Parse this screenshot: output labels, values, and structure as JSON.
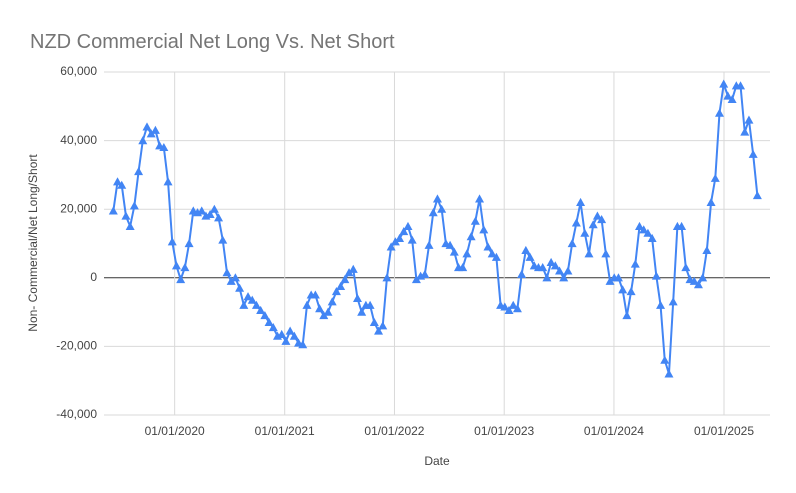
{
  "chart_data": {
    "type": "line",
    "title": "NZD Commercial Net Long Vs. Net Short",
    "x_label": "Date",
    "y_label": "Non- Commercial/Net Long/Short",
    "grid": true,
    "marker": "triangle",
    "xlim": [
      "2019-05-11",
      "2025-06-03"
    ],
    "xticks": [
      {
        "value": "2020-01-01",
        "label": "01/01/2020"
      },
      {
        "value": "2021-01-01",
        "label": "01/01/2021"
      },
      {
        "value": "2022-01-01",
        "label": "01/01/2022"
      },
      {
        "value": "2023-01-01",
        "label": "01/01/2023"
      },
      {
        "value": "2024-01-01",
        "label": "01/01/2024"
      },
      {
        "value": "2025-01-01",
        "label": "01/01/2025"
      }
    ],
    "ylim": [
      -40000,
      60000
    ],
    "yticks": [
      {
        "value": -40000,
        "label": "-40,000"
      },
      {
        "value": -20000,
        "label": "-20,000"
      },
      0,
      {
        "value": 20000,
        "label": "20,000"
      },
      {
        "value": 40000,
        "label": "40,000"
      },
      {
        "value": 60000,
        "label": "60,000"
      }
    ],
    "x": [
      "2019-06-11",
      "2019-06-25",
      "2019-07-09",
      "2019-07-23",
      "2019-08-06",
      "2019-08-20",
      "2019-09-03",
      "2019-09-17",
      "2019-10-01",
      "2019-10-15",
      "2019-10-29",
      "2019-11-12",
      "2019-11-26",
      "2019-12-10",
      "2019-12-24",
      "2020-01-07",
      "2020-01-21",
      "2020-02-04",
      "2020-02-18",
      "2020-03-03",
      "2020-03-17",
      "2020-03-31",
      "2020-04-14",
      "2020-04-28",
      "2020-05-12",
      "2020-05-26",
      "2020-06-09",
      "2020-06-23",
      "2020-07-07",
      "2020-07-21",
      "2020-08-04",
      "2020-08-18",
      "2020-09-01",
      "2020-09-15",
      "2020-09-29",
      "2020-10-13",
      "2020-10-27",
      "2020-11-10",
      "2020-11-24",
      "2020-12-08",
      "2020-12-22",
      "2021-01-05",
      "2021-01-19",
      "2021-02-02",
      "2021-02-16",
      "2021-03-02",
      "2021-03-16",
      "2021-03-30",
      "2021-04-13",
      "2021-04-27",
      "2021-05-11",
      "2021-05-25",
      "2021-06-08",
      "2021-06-22",
      "2021-07-06",
      "2021-07-20",
      "2021-08-03",
      "2021-08-17",
      "2021-08-31",
      "2021-09-14",
      "2021-09-28",
      "2021-10-12",
      "2021-10-26",
      "2021-11-09",
      "2021-11-23",
      "2021-12-07",
      "2021-12-21",
      "2022-01-04",
      "2022-01-18",
      "2022-02-01",
      "2022-02-15",
      "2022-03-01",
      "2022-03-15",
      "2022-03-29",
      "2022-04-12",
      "2022-04-26",
      "2022-05-10",
      "2022-05-24",
      "2022-06-07",
      "2022-06-21",
      "2022-07-05",
      "2022-07-19",
      "2022-08-02",
      "2022-08-16",
      "2022-08-30",
      "2022-09-13",
      "2022-09-27",
      "2022-10-11",
      "2022-10-25",
      "2022-11-08",
      "2022-11-22",
      "2022-12-06",
      "2022-12-20",
      "2023-01-03",
      "2023-01-17",
      "2023-01-31",
      "2023-02-14",
      "2023-02-28",
      "2023-03-14",
      "2023-03-28",
      "2023-04-11",
      "2023-04-25",
      "2023-05-09",
      "2023-05-23",
      "2023-06-06",
      "2023-06-20",
      "2023-07-04",
      "2023-07-18",
      "2023-08-01",
      "2023-08-15",
      "2023-08-29",
      "2023-09-12",
      "2023-09-26",
      "2023-10-10",
      "2023-10-24",
      "2023-11-07",
      "2023-11-21",
      "2023-12-05",
      "2023-12-19",
      "2024-01-02",
      "2024-01-16",
      "2024-01-30",
      "2024-02-13",
      "2024-02-27",
      "2024-03-12",
      "2024-03-26",
      "2024-04-09",
      "2024-04-23",
      "2024-05-07",
      "2024-05-21",
      "2024-06-04",
      "2024-06-18",
      "2024-07-02",
      "2024-07-16",
      "2024-07-30",
      "2024-08-13",
      "2024-08-27",
      "2024-09-10",
      "2024-09-24",
      "2024-10-08",
      "2024-10-22",
      "2024-11-05",
      "2024-11-19",
      "2024-12-03",
      "2024-12-17",
      "2024-12-31",
      "2025-01-14",
      "2025-01-28",
      "2025-02-11",
      "2025-02-25",
      "2025-03-11",
      "2025-03-25",
      "2025-04-08",
      "2025-04-22"
    ],
    "series": [
      {
        "name": "Net Long/Short",
        "color": "#4285f4",
        "values": [
          19500,
          28000,
          27000,
          18000,
          15000,
          21000,
          31000,
          40000,
          44000,
          42000,
          43000,
          38500,
          38000,
          28000,
          10500,
          3500,
          -500,
          3000,
          10000,
          19500,
          19000,
          19500,
          18000,
          18500,
          20000,
          17500,
          11000,
          1500,
          -1000,
          0,
          -3000,
          -8000,
          -5500,
          -6500,
          -8000,
          -9500,
          -11000,
          -13000,
          -14500,
          -17000,
          -16500,
          -18500,
          -15500,
          -17000,
          -19000,
          -19500,
          -8000,
          -5000,
          -5000,
          -9000,
          -11000,
          -10000,
          -7000,
          -4000,
          -2500,
          -500,
          1500,
          2500,
          -6000,
          -10000,
          -8000,
          -8000,
          -13000,
          -15500,
          -14000,
          0,
          9000,
          10500,
          11500,
          13500,
          15000,
          11000,
          -500,
          500,
          1000,
          9500,
          19000,
          23000,
          20000,
          10000,
          9500,
          7500,
          3000,
          3000,
          7000,
          12000,
          16500,
          23000,
          14000,
          9000,
          7000,
          6000,
          -8000,
          -8500,
          -9500,
          -8000,
          -9000,
          1000,
          8000,
          6000,
          3500,
          3000,
          3000,
          0,
          4500,
          3500,
          2000,
          0,
          2000,
          10000,
          16000,
          22000,
          13000,
          7000,
          15500,
          18000,
          17000,
          7000,
          -1000,
          0,
          0,
          -3500,
          -11000,
          -4000,
          4000,
          15000,
          14000,
          13000,
          11500,
          500,
          -8000,
          -24000,
          -28000,
          -7000,
          15000,
          15000,
          3000,
          -500,
          -1000,
          -2000,
          0,
          8000,
          22000,
          29000,
          48000,
          56500,
          53000,
          52000,
          56000,
          56000,
          42500,
          46000,
          36000,
          24000
        ]
      }
    ]
  }
}
